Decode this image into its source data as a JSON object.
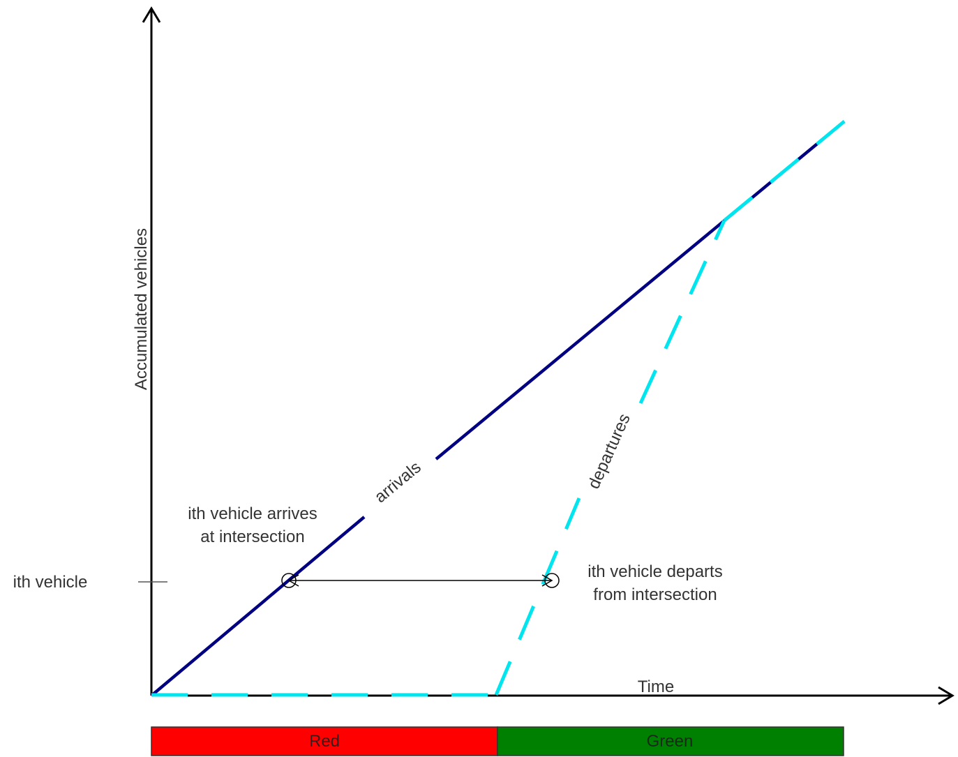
{
  "axes": {
    "y_label": "Accumulated vehicles",
    "x_label": "Time"
  },
  "lines": {
    "arrivals": {
      "label": "arrivals",
      "color": "#000080"
    },
    "departures": {
      "label": "departures",
      "color": "#00e5ee"
    }
  },
  "annotations": {
    "ith_vehicle": "ith vehicle",
    "arrive_line1": "ith vehicle arrives",
    "arrive_line2": "at intersection",
    "depart_line1": "ith vehicle departs",
    "depart_line2": "from intersection"
  },
  "signal_phases": [
    {
      "label": "Red",
      "color": "#ff0000"
    },
    {
      "label": "Green",
      "color": "#008000"
    }
  ]
}
